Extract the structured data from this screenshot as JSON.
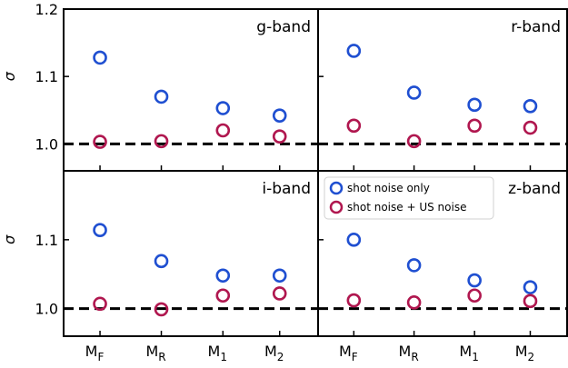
{
  "chart_data": {
    "type": "scatter",
    "layout": "2x2 panels, shared x and y axes",
    "ylabel": "σ",
    "categories": [
      "M_F",
      "M_R",
      "M_1",
      "M_2"
    ],
    "category_labels": [
      {
        "base": "M",
        "sub": "F"
      },
      {
        "base": "M",
        "sub": "R"
      },
      {
        "base": "M",
        "sub": "1"
      },
      {
        "base": "M",
        "sub": "2"
      }
    ],
    "ylim": [
      0.96,
      1.2
    ],
    "yticks": [
      "1.0",
      "1.1",
      "1.2"
    ],
    "reference_line": {
      "y": 1.0,
      "style": "dashed",
      "color": "#000000"
    },
    "series_styles": [
      {
        "color": "#1f4fd1",
        "marker": "open-circle"
      },
      {
        "color": "#b0174f",
        "marker": "open-circle"
      }
    ],
    "legend": {
      "panel": "z-band",
      "placement": "top-left",
      "entries": [
        "shot noise only",
        "shot noise + US noise"
      ]
    },
    "panels": [
      {
        "name": "g-band",
        "series": [
          {
            "name": "shot noise only",
            "values": [
              1.128,
              1.07,
              1.053,
              1.042
            ]
          },
          {
            "name": "shot noise + US noise",
            "values": [
              1.003,
              1.004,
              1.02,
              1.011
            ]
          }
        ]
      },
      {
        "name": "r-band",
        "series": [
          {
            "name": "shot noise only",
            "values": [
              1.138,
              1.076,
              1.058,
              1.056
            ]
          },
          {
            "name": "shot noise + US noise",
            "values": [
              1.027,
              1.004,
              1.027,
              1.024
            ]
          }
        ]
      },
      {
        "name": "i-band",
        "series": [
          {
            "name": "shot noise only",
            "values": [
              1.114,
              1.069,
              1.048,
              1.048
            ]
          },
          {
            "name": "shot noise + US noise",
            "values": [
              1.007,
              0.999,
              1.019,
              1.022
            ]
          }
        ]
      },
      {
        "name": "z-band",
        "series": [
          {
            "name": "shot noise only",
            "values": [
              1.1,
              1.063,
              1.041,
              1.031
            ]
          },
          {
            "name": "shot noise + US noise",
            "values": [
              1.012,
              1.009,
              1.019,
              1.011
            ]
          }
        ]
      }
    ]
  }
}
